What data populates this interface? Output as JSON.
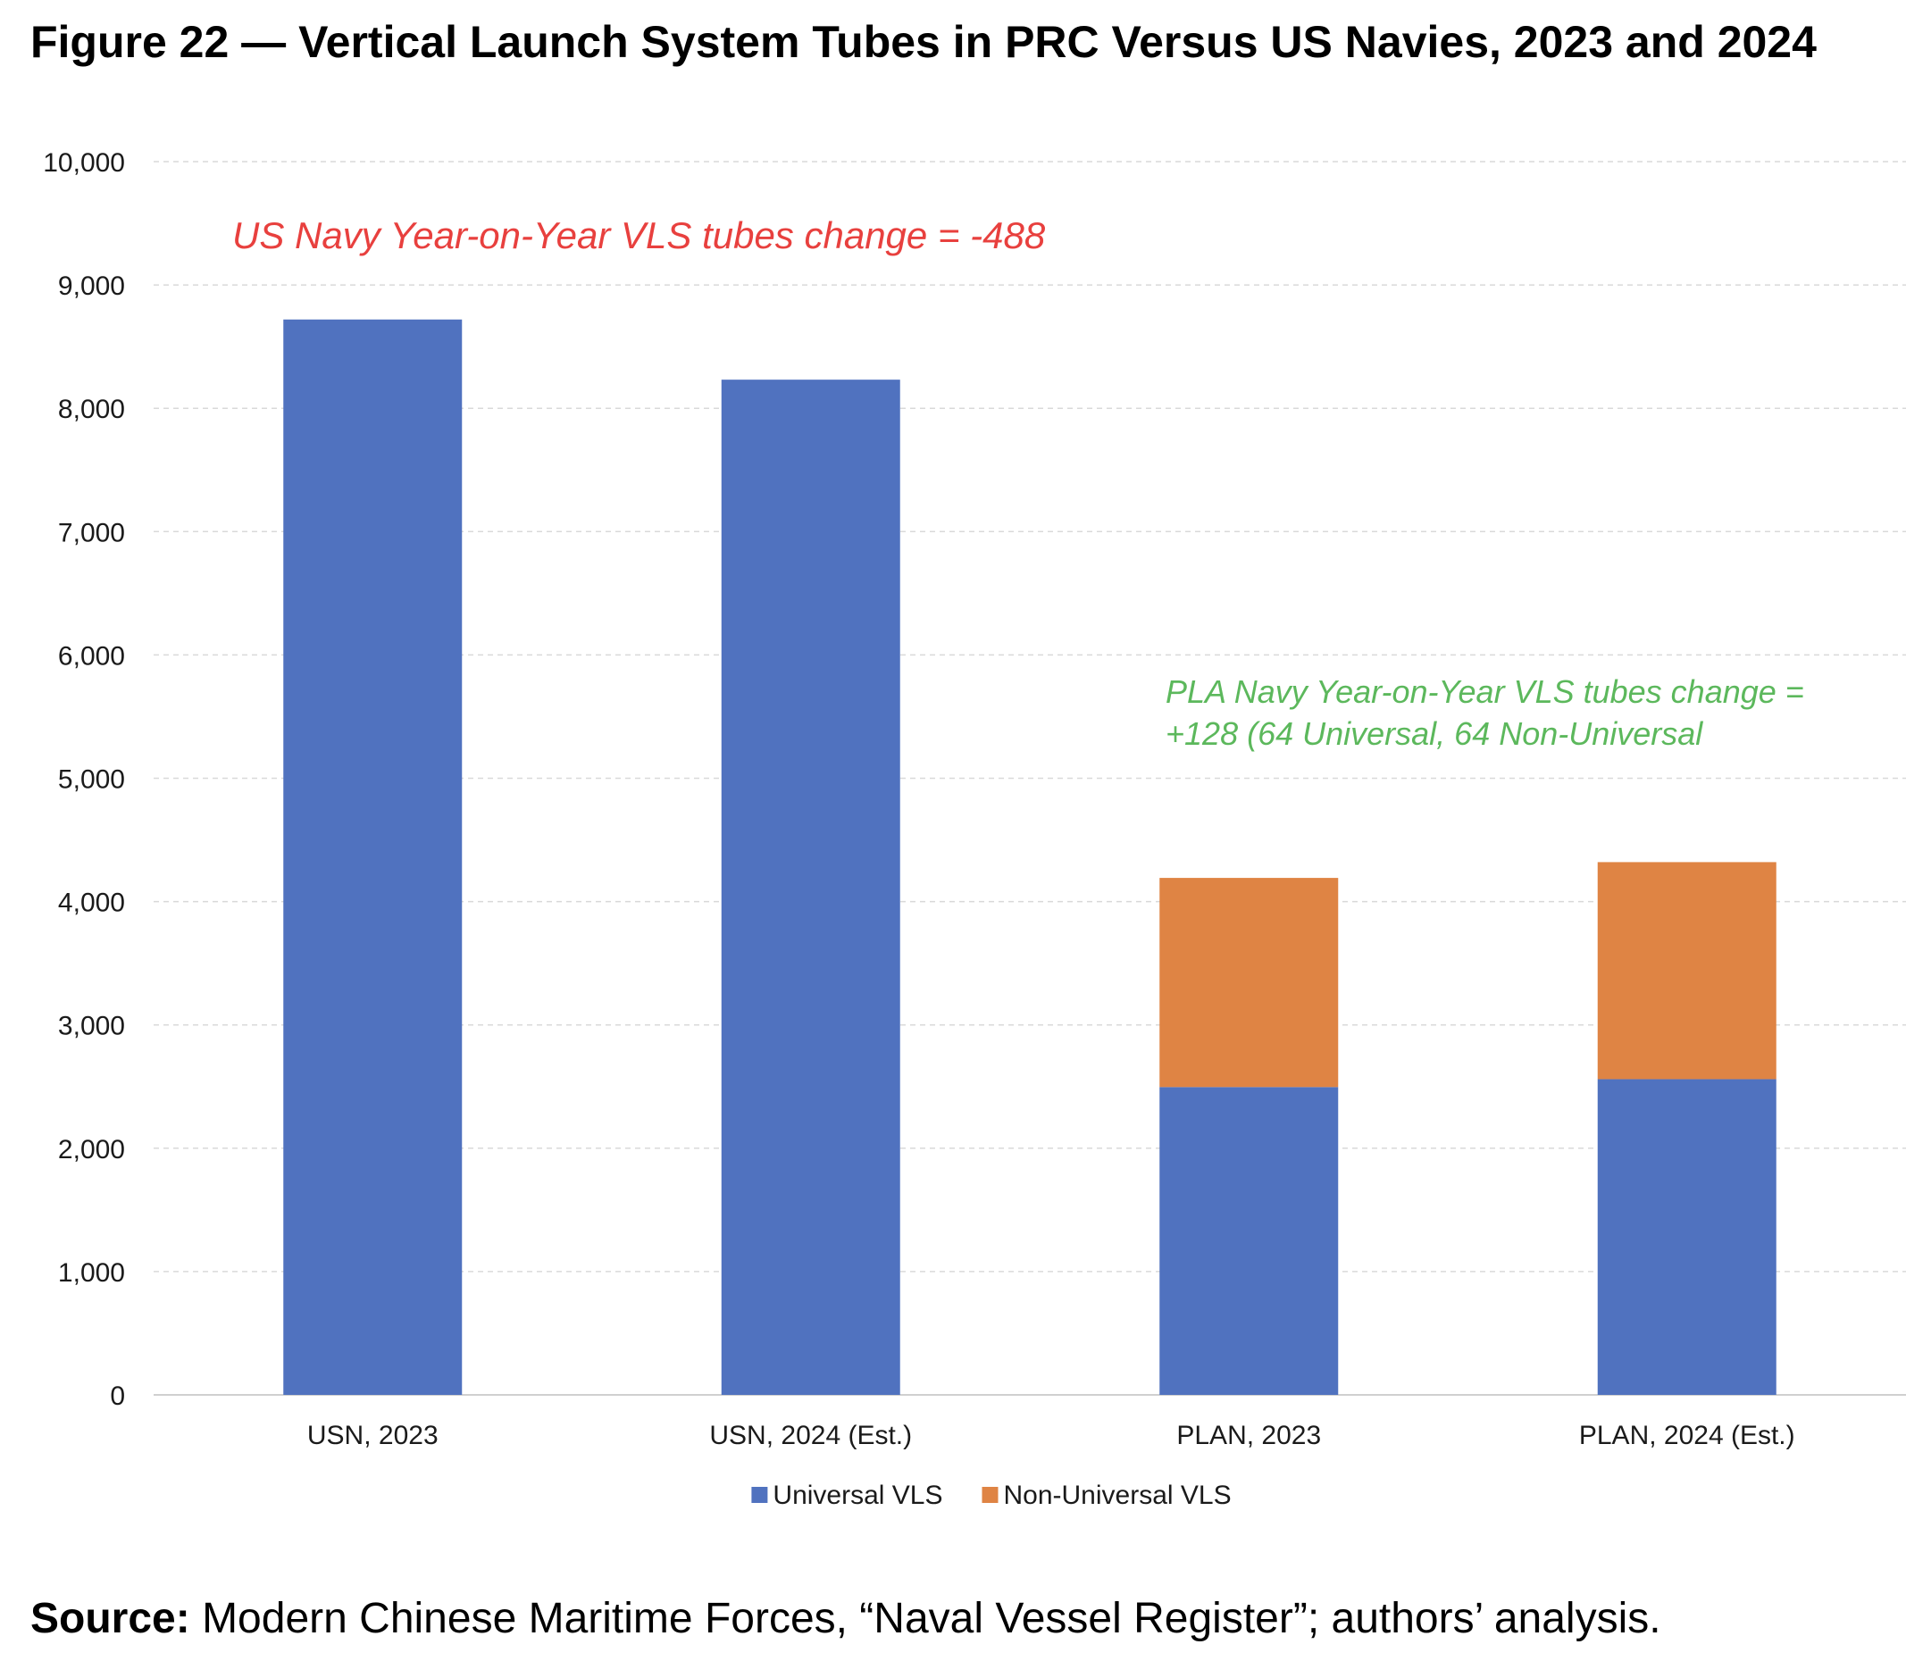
{
  "figure": {
    "title": "Figure 22 — Vertical Launch System Tubes in PRC Versus US Navies, 2023 and 2024"
  },
  "source": {
    "label": "Source:",
    "text": "Modern Chinese Maritime Forces, “Naval Vessel Register”; authors’ analysis."
  },
  "chart_data": {
    "type": "bar",
    "stacked": true,
    "categories": [
      "USN, 2023",
      "USN, 2024 (Est.)",
      "PLAN, 2023",
      "PLAN, 2024 (Est.)"
    ],
    "series": [
      {
        "name": "Universal VLS",
        "color": "#5072bf",
        "values": [
          8720,
          8232,
          2496,
          2560
        ]
      },
      {
        "name": "Non-Universal VLS",
        "color": "#df8444",
        "values": [
          0,
          0,
          1696,
          1760
        ]
      }
    ],
    "ylim": [
      0,
      10000
    ],
    "yticks": [
      0,
      1000,
      2000,
      3000,
      4000,
      5000,
      6000,
      7000,
      8000,
      9000,
      10000
    ],
    "ytick_labels": [
      "0",
      "1,000",
      "2,000",
      "3,000",
      "4,000",
      "5,000",
      "6,000",
      "7,000",
      "8,000",
      "9,000",
      "10,000"
    ],
    "grid": true,
    "legend_position": "bottom",
    "annotations": [
      {
        "text": "US Navy Year-on-Year VLS tubes change = -488",
        "color": "#e8403e"
      },
      {
        "text_lines": [
          "PLA Navy Year-on-Year VLS tubes change =",
          "+128 (64 Universal, 64 Non-Universal"
        ],
        "color": "#5cb85c"
      }
    ]
  }
}
